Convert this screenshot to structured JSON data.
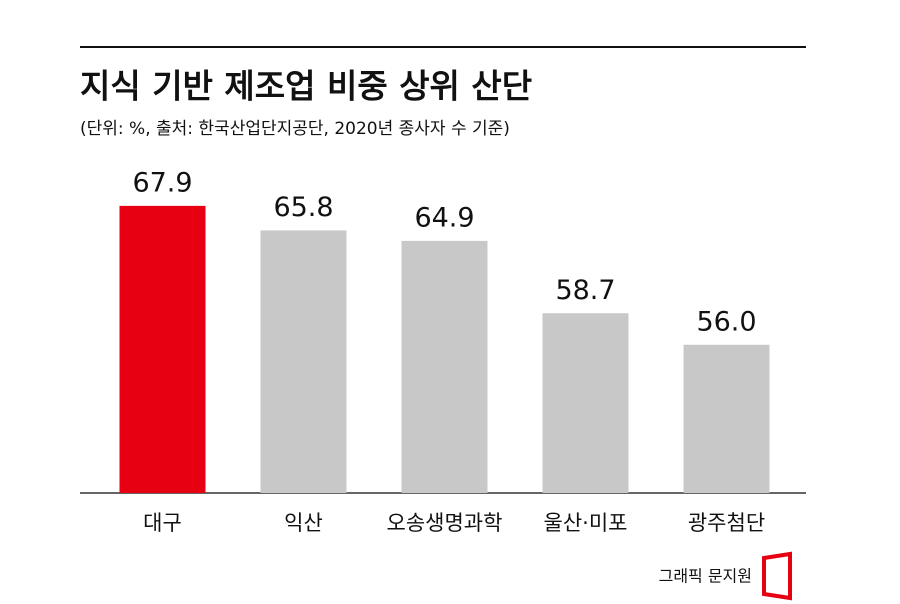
{
  "chart_data": {
    "type": "bar",
    "title": "지식 기반 제조업 비중 상위 산단",
    "subtitle": "(단위: %, 출처: 한국산업단지공단, 2020년 종사자 수 기준)",
    "categories": [
      "대구",
      "익산",
      "오송생명과학",
      "울산·미포",
      "광주첨단"
    ],
    "values": [
      67.9,
      65.8,
      64.9,
      58.7,
      56.0
    ],
    "value_labels": [
      "67.9",
      "65.8",
      "64.9",
      "58.7",
      "56.0"
    ],
    "colors": [
      "#e60012",
      "#c8c8c8",
      "#c8c8c8",
      "#c8c8c8",
      "#c8c8c8"
    ],
    "ylim": [
      43.3,
      75
    ],
    "credit": "그래픽 문지원"
  }
}
